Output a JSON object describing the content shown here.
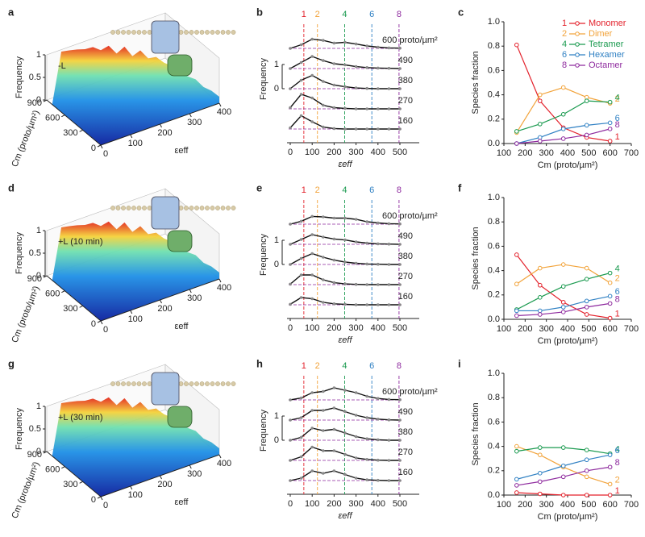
{
  "chart_data": [
    {
      "type": "surface",
      "panel_label": "a",
      "annotation": "-L",
      "zlabel": "Frequency",
      "ylabel": "Cm (proto/µm²)",
      "xlabel": "εeff",
      "xlim": [
        0,
        400
      ],
      "xticks": [
        0,
        100,
        200,
        300,
        400
      ],
      "ylim": [
        0,
        900
      ],
      "yticks": [
        0,
        300,
        600,
        900
      ],
      "zlim": [
        0,
        1
      ],
      "zticks": [
        0,
        0.5,
        1
      ]
    },
    {
      "type": "ridge",
      "panel_label": "b",
      "xlabel": "εeff",
      "ylabel": "Frequency",
      "xlim": [
        0,
        500
      ],
      "xticks": [
        0,
        100,
        200,
        300,
        400,
        500
      ],
      "scale_ticks": [
        0,
        1
      ],
      "species": [
        {
          "label": "1",
          "x": 62,
          "color": "#e3212b"
        },
        {
          "label": "2",
          "x": 124,
          "color": "#f2a33a"
        },
        {
          "label": "4",
          "x": 248,
          "color": "#1a9a4f"
        },
        {
          "label": "6",
          "x": 372,
          "color": "#2f80c3"
        },
        {
          "label": "8",
          "x": 496,
          "color": "#8e2a9e"
        }
      ],
      "x": [
        0,
        50,
        100,
        150,
        200,
        250,
        300,
        350,
        400,
        450,
        500
      ],
      "ridges": [
        {
          "name": "600 proto/µm²",
          "values": [
            0,
            0.15,
            0.38,
            0.33,
            0.22,
            0.25,
            0.18,
            0.1,
            0.05,
            0.02,
            0.01
          ]
        },
        {
          "name": "490",
          "values": [
            0,
            0.25,
            0.5,
            0.33,
            0.2,
            0.15,
            0.08,
            0.04,
            0.02,
            0.01,
            0
          ]
        },
        {
          "name": "380",
          "values": [
            0,
            0.35,
            0.55,
            0.3,
            0.15,
            0.08,
            0.03,
            0.01,
            0,
            0,
            0
          ]
        },
        {
          "name": "270",
          "values": [
            0.05,
            0.6,
            0.45,
            0.15,
            0.05,
            0.02,
            0,
            0,
            0,
            0,
            0
          ]
        },
        {
          "name": "160",
          "values": [
            0.05,
            0.55,
            0.3,
            0.08,
            0.02,
            0,
            0,
            0,
            0,
            0,
            0
          ]
        }
      ]
    },
    {
      "type": "line",
      "panel_label": "c",
      "xlabel": "Cm (proto/µm²)",
      "ylabel": "Species fraction",
      "x": [
        160,
        270,
        380,
        490,
        600
      ],
      "xlim": [
        100,
        700
      ],
      "xticks": [
        100,
        200,
        300,
        400,
        500,
        600,
        700
      ],
      "ylim": [
        0,
        1
      ],
      "yticks": [
        {
          "value": 0,
          "label": "0.0"
        },
        {
          "value": 0.2,
          "label": "0.2"
        },
        {
          "value": 0.4,
          "label": "0.4"
        },
        {
          "value": 0.6,
          "label": "0.6"
        },
        {
          "value": 0.8,
          "label": "0.8"
        },
        {
          "value": 1,
          "label": "1.0"
        }
      ],
      "legend": true,
      "series": [
        {
          "number": "1",
          "name": "Monomer",
          "color": "#e3212b",
          "values": [
            0.81,
            0.35,
            0.13,
            0.05,
            0.02
          ]
        },
        {
          "number": "2",
          "name": "Dimer",
          "color": "#f2a33a",
          "values": [
            0.09,
            0.4,
            0.46,
            0.38,
            0.33
          ]
        },
        {
          "number": "4",
          "name": "Tetramer",
          "color": "#1a9a4f",
          "values": [
            0.1,
            0.16,
            0.24,
            0.35,
            0.34
          ]
        },
        {
          "number": "6",
          "name": "Hexamer",
          "color": "#2f80c3",
          "values": [
            0,
            0.05,
            0.12,
            0.15,
            0.17
          ]
        },
        {
          "number": "8",
          "name": "Octamer",
          "color": "#8e2a9e",
          "values": [
            0,
            0.02,
            0.04,
            0.07,
            0.12
          ]
        }
      ]
    },
    {
      "type": "surface",
      "panel_label": "d",
      "annotation": "+L (10 min)",
      "zlabel": "Frequency",
      "ylabel": "Cm (proto/µm²)",
      "xlabel": "εeff",
      "xlim": [
        0,
        400
      ],
      "xticks": [
        0,
        100,
        200,
        300,
        400
      ],
      "ylim": [
        0,
        900
      ],
      "yticks": [
        0,
        300,
        600,
        900
      ],
      "zlim": [
        0,
        1
      ],
      "zticks": [
        0,
        0.5,
        1
      ]
    },
    {
      "type": "ridge",
      "panel_label": "e",
      "xlabel": "εeff",
      "ylabel": "Frequency",
      "xlim": [
        0,
        500
      ],
      "xticks": [
        0,
        100,
        200,
        300,
        400,
        500
      ],
      "scale_ticks": [
        0,
        1
      ],
      "species": [
        {
          "label": "1",
          "x": 62,
          "color": "#e3212b"
        },
        {
          "label": "2",
          "x": 124,
          "color": "#f2a33a"
        },
        {
          "label": "4",
          "x": 248,
          "color": "#1a9a4f"
        },
        {
          "label": "6",
          "x": 372,
          "color": "#2f80c3"
        },
        {
          "label": "8",
          "x": 496,
          "color": "#8e2a9e"
        }
      ],
      "x": [
        0,
        50,
        100,
        150,
        200,
        250,
        300,
        350,
        400,
        450,
        500
      ],
      "ridges": [
        {
          "name": "600 proto/µm²",
          "values": [
            0,
            0.12,
            0.32,
            0.3,
            0.25,
            0.25,
            0.2,
            0.1,
            0.05,
            0.02,
            0.01
          ]
        },
        {
          "name": "490",
          "values": [
            0,
            0.2,
            0.4,
            0.3,
            0.22,
            0.18,
            0.1,
            0.05,
            0.02,
            0.01,
            0
          ]
        },
        {
          "name": "380",
          "values": [
            0,
            0.25,
            0.45,
            0.3,
            0.18,
            0.1,
            0.05,
            0.02,
            0.01,
            0,
            0
          ]
        },
        {
          "name": "270",
          "values": [
            0.02,
            0.4,
            0.4,
            0.2,
            0.08,
            0.03,
            0.01,
            0,
            0,
            0,
            0
          ]
        },
        {
          "name": "160",
          "values": [
            0.02,
            0.3,
            0.25,
            0.1,
            0.04,
            0.02,
            0,
            0,
            0,
            0,
            0
          ]
        }
      ]
    },
    {
      "type": "line",
      "panel_label": "f",
      "xlabel": "Cm (proto/µm²)",
      "ylabel": "Species fraction",
      "x": [
        160,
        270,
        380,
        490,
        600
      ],
      "xlim": [
        100,
        700
      ],
      "xticks": [
        100,
        200,
        300,
        400,
        500,
        600,
        700
      ],
      "ylim": [
        0,
        1
      ],
      "yticks": [
        {
          "value": 0,
          "label": "0.0"
        },
        {
          "value": 0.2,
          "label": "0.2"
        },
        {
          "value": 0.4,
          "label": "0.4"
        },
        {
          "value": 0.6,
          "label": "0.6"
        },
        {
          "value": 0.8,
          "label": "0.8"
        },
        {
          "value": 1,
          "label": "1.0"
        }
      ],
      "legend": false,
      "series": [
        {
          "number": "1",
          "color": "#e3212b",
          "values": [
            0.53,
            0.28,
            0.14,
            0.04,
            0.01
          ]
        },
        {
          "number": "2",
          "color": "#f2a33a",
          "values": [
            0.29,
            0.42,
            0.45,
            0.42,
            0.3
          ]
        },
        {
          "number": "4",
          "color": "#1a9a4f",
          "values": [
            0.08,
            0.18,
            0.27,
            0.33,
            0.38
          ]
        },
        {
          "number": "6",
          "color": "#2f80c3",
          "values": [
            0.07,
            0.07,
            0.1,
            0.15,
            0.19
          ]
        },
        {
          "number": "8",
          "color": "#8e2a9e",
          "values": [
            0.03,
            0.04,
            0.06,
            0.1,
            0.13
          ]
        }
      ]
    },
    {
      "type": "surface",
      "panel_label": "g",
      "annotation": "+L (30 min)",
      "zlabel": "Frequency",
      "ylabel": "Cm (proto/µm²)",
      "xlabel": "εeff",
      "xlim": [
        0,
        400
      ],
      "xticks": [
        0,
        100,
        200,
        300,
        400
      ],
      "ylim": [
        0,
        900
      ],
      "yticks": [
        0,
        300,
        600,
        900
      ],
      "zlim": [
        0,
        1
      ],
      "zticks": [
        0,
        0.5,
        1
      ]
    },
    {
      "type": "ridge",
      "panel_label": "h",
      "xlabel": "εeff",
      "ylabel": "Frequency",
      "xlim": [
        0,
        500
      ],
      "xticks": [
        0,
        100,
        200,
        300,
        400,
        500
      ],
      "scale_ticks": [
        0,
        1
      ],
      "species": [
        {
          "label": "1",
          "x": 62,
          "color": "#e3212b"
        },
        {
          "label": "2",
          "x": 124,
          "color": "#f2a33a"
        },
        {
          "label": "4",
          "x": 248,
          "color": "#1a9a4f"
        },
        {
          "label": "6",
          "x": 372,
          "color": "#2f80c3"
        },
        {
          "label": "8",
          "x": 496,
          "color": "#8e2a9e"
        }
      ],
      "x": [
        0,
        50,
        100,
        150,
        200,
        250,
        300,
        350,
        400,
        450,
        500
      ],
      "ridges": [
        {
          "name": "600 proto/µm²",
          "values": [
            0,
            0.08,
            0.3,
            0.35,
            0.5,
            0.4,
            0.3,
            0.15,
            0.06,
            0.02,
            0.01
          ]
        },
        {
          "name": "490",
          "values": [
            0,
            0.1,
            0.4,
            0.4,
            0.5,
            0.35,
            0.2,
            0.1,
            0.04,
            0.01,
            0
          ]
        },
        {
          "name": "380",
          "values": [
            0,
            0.12,
            0.5,
            0.4,
            0.45,
            0.3,
            0.15,
            0.06,
            0.02,
            0,
            0
          ]
        },
        {
          "name": "270",
          "values": [
            0,
            0.15,
            0.55,
            0.4,
            0.4,
            0.25,
            0.1,
            0.04,
            0.01,
            0,
            0
          ]
        },
        {
          "name": "160",
          "values": [
            0,
            0.1,
            0.4,
            0.3,
            0.4,
            0.25,
            0.1,
            0.03,
            0.01,
            0,
            0
          ]
        }
      ]
    },
    {
      "type": "line",
      "panel_label": "i",
      "xlabel": "Cm (proto/µm²)",
      "ylabel": "Species fraction",
      "x": [
        160,
        270,
        380,
        490,
        600
      ],
      "xlim": [
        100,
        700
      ],
      "xticks": [
        100,
        200,
        300,
        400,
        500,
        600,
        700
      ],
      "ylim": [
        0,
        1
      ],
      "yticks": [
        {
          "value": 0,
          "label": "0.0"
        },
        {
          "value": 0.2,
          "label": "0.2"
        },
        {
          "value": 0.4,
          "label": "0.4"
        },
        {
          "value": 0.6,
          "label": "0.6"
        },
        {
          "value": 0.8,
          "label": "0.8"
        },
        {
          "value": 1,
          "label": "1.0"
        }
      ],
      "legend": false,
      "series": [
        {
          "number": "1",
          "color": "#e3212b",
          "values": [
            0.02,
            0.01,
            0,
            0,
            0
          ]
        },
        {
          "number": "2",
          "color": "#f2a33a",
          "values": [
            0.4,
            0.33,
            0.23,
            0.15,
            0.09
          ]
        },
        {
          "number": "4",
          "color": "#1a9a4f",
          "values": [
            0.36,
            0.39,
            0.39,
            0.37,
            0.34
          ]
        },
        {
          "number": "6",
          "color": "#2f80c3",
          "values": [
            0.13,
            0.18,
            0.24,
            0.29,
            0.33
          ]
        },
        {
          "number": "8",
          "color": "#8e2a9e",
          "values": [
            0.08,
            0.11,
            0.15,
            0.2,
            0.23
          ]
        }
      ]
    }
  ]
}
